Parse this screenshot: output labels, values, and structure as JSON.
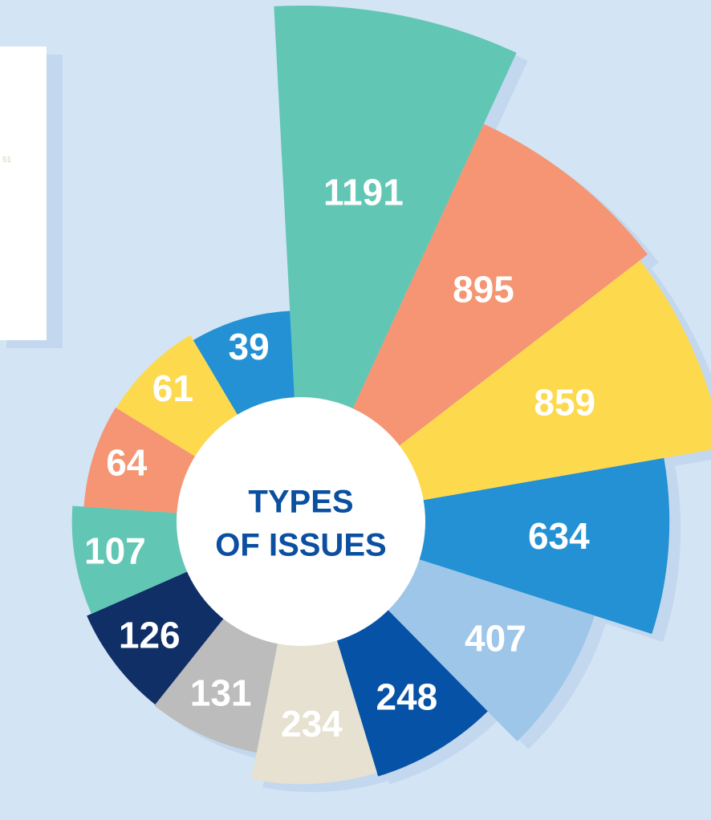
{
  "chart_data": {
    "type": "polar-area",
    "title_lines": [
      "TYPES",
      "OF ISSUES"
    ],
    "side_note": "51",
    "categories": [
      null,
      null,
      null,
      null,
      null,
      null,
      null,
      null,
      null,
      null,
      null,
      null,
      null
    ],
    "values": [
      1191,
      895,
      859,
      634,
      407,
      248,
      234,
      131,
      126,
      107,
      64,
      61,
      39
    ],
    "colors": [
      "#62c6b4",
      "#f59573",
      "#fdd94e",
      "#2391d3",
      "#9dc6e9",
      "#0652a6",
      "#e6e1d1",
      "#bcbcbc",
      "#0f2f66",
      "#62c6b4",
      "#f59573",
      "#fdd94e",
      "#2391d3"
    ]
  }
}
